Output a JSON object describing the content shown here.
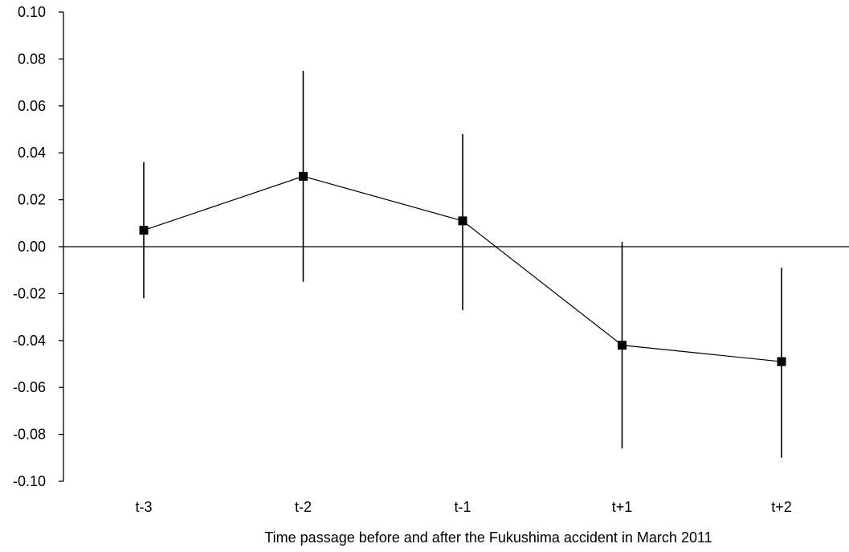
{
  "chart_data": {
    "type": "line",
    "title": "",
    "xlabel": "Time passage before and after the Fukushima accident in March 2011",
    "ylabel": "",
    "categories": [
      "t-3",
      "t-2",
      "t-1",
      "t+1",
      "t+2"
    ],
    "series": [
      {
        "values": [
          0.007,
          0.03,
          0.011,
          -0.042,
          -0.049
        ],
        "ci_lower": [
          -0.022,
          -0.015,
          -0.027,
          -0.086,
          -0.09
        ],
        "ci_upper": [
          0.036,
          0.075,
          0.048,
          0.002,
          -0.009
        ],
        "marker": "square",
        "color": "#000000"
      }
    ],
    "ylim": [
      -0.1,
      0.1
    ],
    "yticks": [
      "0.10",
      "0.08",
      "0.06",
      "0.04",
      "0.02",
      "0.00",
      "-0.02",
      "-0.04",
      "-0.06",
      "-0.08",
      "-0.10"
    ],
    "grid": false,
    "legend": "none"
  }
}
